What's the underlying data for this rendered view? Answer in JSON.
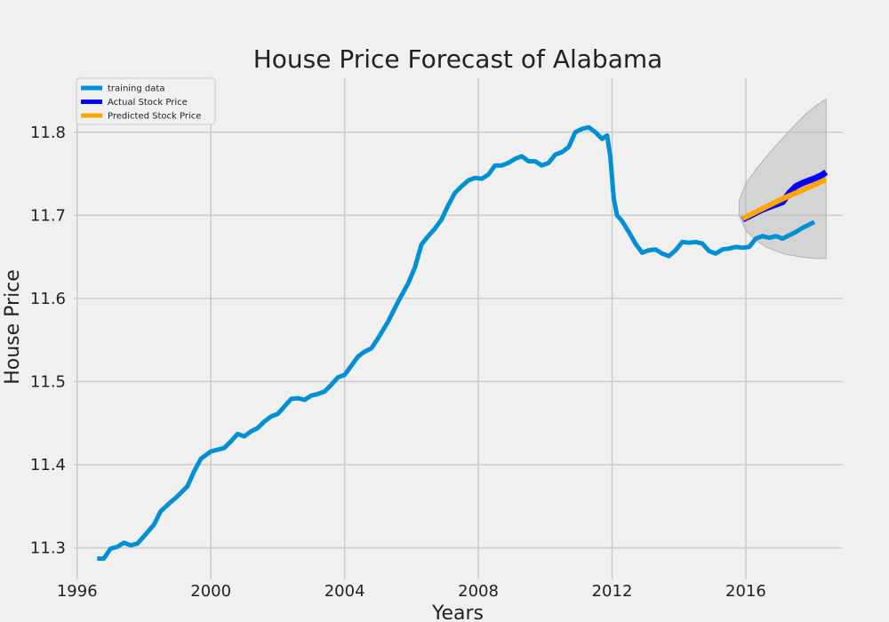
{
  "chart_data": {
    "type": "line",
    "title": "House Price Forecast of Alabama",
    "xlabel": "Years",
    "ylabel": "House Price",
    "xlim": [
      1995.9,
      2018.9
    ],
    "ylim": [
      11.262,
      11.865
    ],
    "x_ticks": [
      1996,
      2000,
      2004,
      2008,
      2012,
      2016
    ],
    "x_tick_labels": [
      "1996",
      "2000",
      "2004",
      "2008",
      "2012",
      "2016"
    ],
    "y_ticks": [
      11.3,
      11.4,
      11.5,
      11.6,
      11.7,
      11.8
    ],
    "y_tick_labels": [
      "11.3",
      "11.4",
      "11.5",
      "11.6",
      "11.7",
      "11.8"
    ],
    "grid": true,
    "legend_position": "top-left",
    "colors": {
      "background": "#f0f0f0",
      "grid": "#cbcbcb",
      "training": "#008fd5",
      "actual": "#0000ff",
      "predicted": "#ffa500",
      "confidence": "#bdbdbd"
    },
    "series": [
      {
        "name": "training data",
        "color": "#008fd5",
        "points": [
          [
            1996.6,
            11.287
          ],
          [
            1996.8,
            11.287
          ],
          [
            1997.0,
            11.299
          ],
          [
            1997.2,
            11.301
          ],
          [
            1997.4,
            11.306
          ],
          [
            1997.6,
            11.303
          ],
          [
            1997.8,
            11.305
          ],
          [
            1998.0,
            11.314
          ],
          [
            1998.3,
            11.328
          ],
          [
            1998.5,
            11.344
          ],
          [
            1998.8,
            11.355
          ],
          [
            1999.0,
            11.362
          ],
          [
            1999.3,
            11.374
          ],
          [
            1999.5,
            11.392
          ],
          [
            1999.7,
            11.407
          ],
          [
            2000.0,
            11.416
          ],
          [
            2000.2,
            11.418
          ],
          [
            2000.4,
            11.42
          ],
          [
            2000.6,
            11.428
          ],
          [
            2000.8,
            11.437
          ],
          [
            2001.0,
            11.434
          ],
          [
            2001.2,
            11.44
          ],
          [
            2001.4,
            11.444
          ],
          [
            2001.6,
            11.452
          ],
          [
            2001.8,
            11.458
          ],
          [
            2002.0,
            11.461
          ],
          [
            2002.2,
            11.47
          ],
          [
            2002.4,
            11.479
          ],
          [
            2002.6,
            11.48
          ],
          [
            2002.8,
            11.478
          ],
          [
            2003.0,
            11.483
          ],
          [
            2003.2,
            11.485
          ],
          [
            2003.4,
            11.488
          ],
          [
            2003.6,
            11.496
          ],
          [
            2003.8,
            11.505
          ],
          [
            2004.0,
            11.508
          ],
          [
            2004.2,
            11.519
          ],
          [
            2004.4,
            11.53
          ],
          [
            2004.6,
            11.536
          ],
          [
            2004.8,
            11.54
          ],
          [
            2005.0,
            11.552
          ],
          [
            2005.3,
            11.572
          ],
          [
            2005.6,
            11.596
          ],
          [
            2005.9,
            11.618
          ],
          [
            2006.1,
            11.637
          ],
          [
            2006.3,
            11.665
          ],
          [
            2006.5,
            11.675
          ],
          [
            2006.7,
            11.684
          ],
          [
            2006.9,
            11.695
          ],
          [
            2007.1,
            11.712
          ],
          [
            2007.3,
            11.727
          ],
          [
            2007.5,
            11.735
          ],
          [
            2007.7,
            11.742
          ],
          [
            2007.9,
            11.745
          ],
          [
            2008.1,
            11.744
          ],
          [
            2008.3,
            11.749
          ],
          [
            2008.5,
            11.76
          ],
          [
            2008.7,
            11.76
          ],
          [
            2008.9,
            11.763
          ],
          [
            2009.1,
            11.768
          ],
          [
            2009.3,
            11.771
          ],
          [
            2009.5,
            11.765
          ],
          [
            2009.7,
            11.765
          ],
          [
            2009.9,
            11.76
          ],
          [
            2010.1,
            11.763
          ],
          [
            2010.3,
            11.773
          ],
          [
            2010.5,
            11.776
          ],
          [
            2010.7,
            11.782
          ],
          [
            2010.9,
            11.8
          ],
          [
            2011.1,
            11.804
          ],
          [
            2011.3,
            11.806
          ],
          [
            2011.5,
            11.8
          ],
          [
            2011.7,
            11.792
          ],
          [
            2011.85,
            11.796
          ],
          [
            2011.95,
            11.77
          ],
          [
            2012.05,
            11.72
          ],
          [
            2012.15,
            11.7
          ],
          [
            2012.3,
            11.693
          ],
          [
            2012.5,
            11.68
          ],
          [
            2012.7,
            11.666
          ],
          [
            2012.9,
            11.655
          ],
          [
            2013.1,
            11.658
          ],
          [
            2013.3,
            11.659
          ],
          [
            2013.5,
            11.654
          ],
          [
            2013.7,
            11.651
          ],
          [
            2013.9,
            11.658
          ],
          [
            2014.1,
            11.668
          ],
          [
            2014.3,
            11.667
          ],
          [
            2014.5,
            11.668
          ],
          [
            2014.7,
            11.666
          ],
          [
            2014.9,
            11.657
          ],
          [
            2015.1,
            11.654
          ],
          [
            2015.3,
            11.659
          ],
          [
            2015.5,
            11.66
          ],
          [
            2015.7,
            11.662
          ],
          [
            2015.9,
            11.661
          ],
          [
            2016.1,
            11.662
          ],
          [
            2016.3,
            11.672
          ],
          [
            2016.5,
            11.675
          ],
          [
            2016.7,
            11.673
          ],
          [
            2016.9,
            11.675
          ],
          [
            2017.1,
            11.672
          ],
          [
            2017.3,
            11.676
          ],
          [
            2017.5,
            11.68
          ],
          [
            2017.7,
            11.685
          ],
          [
            2017.9,
            11.689
          ],
          [
            2018.05,
            11.692
          ]
        ]
      },
      {
        "name": "Actual Stock Price",
        "color": "#0000ff",
        "points": [
          [
            2015.9,
            11.695
          ],
          [
            2016.1,
            11.699
          ],
          [
            2016.3,
            11.703
          ],
          [
            2016.5,
            11.707
          ],
          [
            2016.7,
            11.71
          ],
          [
            2016.9,
            11.713
          ],
          [
            2017.1,
            11.716
          ],
          [
            2017.3,
            11.727
          ],
          [
            2017.5,
            11.735
          ],
          [
            2017.7,
            11.739
          ],
          [
            2017.9,
            11.742
          ],
          [
            2018.1,
            11.745
          ],
          [
            2018.3,
            11.749
          ],
          [
            2018.4,
            11.752
          ]
        ]
      },
      {
        "name": "Predicted Stock Price",
        "color": "#ffa500",
        "points": [
          [
            2015.9,
            11.696
          ],
          [
            2016.5,
            11.708
          ],
          [
            2017.0,
            11.718
          ],
          [
            2017.5,
            11.727
          ],
          [
            2018.0,
            11.736
          ],
          [
            2018.4,
            11.743
          ]
        ]
      }
    ],
    "confidence_interval": {
      "x": [
        2015.8,
        2016.0,
        2016.3,
        2016.6,
        2016.9,
        2017.2,
        2017.5,
        2017.8,
        2018.1,
        2018.4
      ],
      "lower": [
        11.7,
        11.682,
        11.67,
        11.662,
        11.657,
        11.653,
        11.651,
        11.649,
        11.648,
        11.648
      ],
      "upper": [
        11.718,
        11.738,
        11.755,
        11.77,
        11.784,
        11.797,
        11.81,
        11.822,
        11.832,
        11.84
      ]
    }
  }
}
